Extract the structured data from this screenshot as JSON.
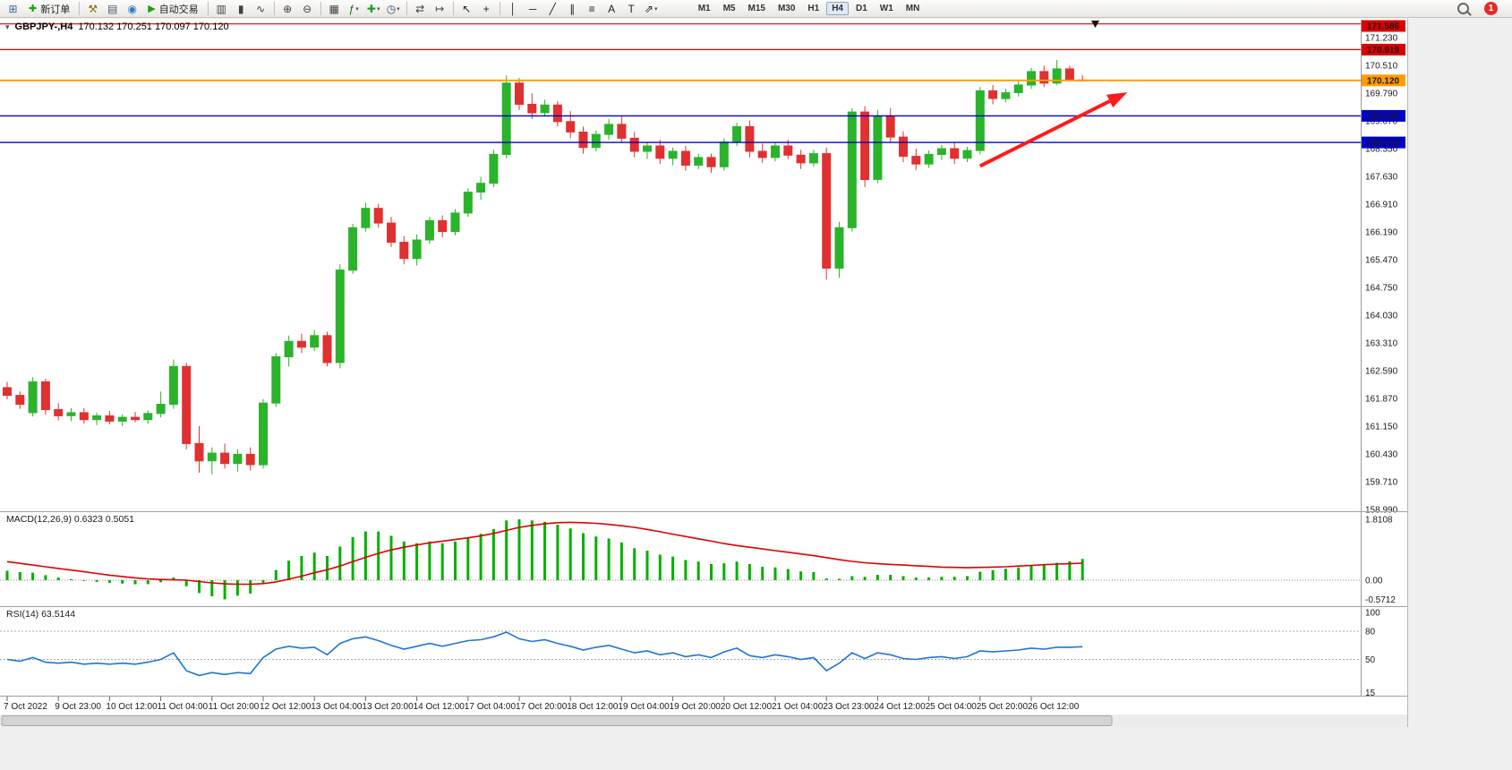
{
  "toolbar": {
    "items": [
      {
        "type": "icon",
        "name": "new-chart-icon",
        "glyph": "⊞",
        "color": "#2e6da4"
      },
      {
        "type": "button",
        "name": "new-order-button",
        "glyph": "✚",
        "glyph_color": "#18a018",
        "label": "新订单"
      },
      {
        "type": "sep"
      },
      {
        "type": "icon",
        "name": "metaeditor-icon",
        "glyph": "⚒",
        "color": "#8a6d21"
      },
      {
        "type": "icon",
        "name": "print-icon",
        "glyph": "▤",
        "color": "#4a5a6a"
      },
      {
        "type": "icon",
        "name": "data-window-icon",
        "glyph": "◉",
        "color": "#2e7dbd"
      },
      {
        "type": "button",
        "name": "autotrading-button",
        "glyph": "▶",
        "glyph_color": "#18a018",
        "label": "自动交易"
      },
      {
        "type": "sep"
      },
      {
        "type": "icon",
        "name": "bar-chart-icon",
        "glyph": "▥",
        "color": "#3f3f3f"
      },
      {
        "type": "icon",
        "name": "candlestick-chart-icon",
        "glyph": "▮",
        "color": "#3f3f3f"
      },
      {
        "type": "icon",
        "name": "line-chart-icon",
        "glyph": "∿",
        "color": "#3f3f3f"
      },
      {
        "type": "sep"
      },
      {
        "type": "icon",
        "name": "zoom-in-icon",
        "glyph": "⊕",
        "color": "#3f3f3f"
      },
      {
        "type": "icon",
        "name": "zoom-out-icon",
        "glyph": "⊖",
        "color": "#3f3f3f"
      },
      {
        "type": "sep"
      },
      {
        "type": "icon",
        "name": "tile-windows-icon",
        "glyph": "▦",
        "color": "#3f3f3f"
      },
      {
        "type": "icon",
        "name": "indicators-icon",
        "glyph": "ƒ",
        "color": "#0a7a0a",
        "caret": true
      },
      {
        "type": "icon",
        "name": "new-chart-dropdown-icon",
        "glyph": "✚",
        "color": "#18a018",
        "caret": true
      },
      {
        "type": "icon",
        "name": "periods-dropdown-icon",
        "glyph": "◷",
        "color": "#2e4a6a",
        "caret": true
      },
      {
        "type": "sep"
      },
      {
        "type": "icon",
        "name": "autoscroll-icon",
        "glyph": "⇄",
        "color": "#3f3f3f"
      },
      {
        "type": "icon",
        "name": "chart-shift-icon",
        "glyph": "↦",
        "color": "#3f3f3f"
      },
      {
        "type": "sep"
      },
      {
        "type": "icon",
        "name": "cursor-icon",
        "glyph": "↖",
        "color": "#222222"
      },
      {
        "type": "icon",
        "name": "crosshair-icon",
        "glyph": "+",
        "color": "#222222"
      },
      {
        "type": "sep"
      },
      {
        "type": "icon",
        "name": "vertical-line-icon",
        "glyph": "│",
        "color": "#222222"
      },
      {
        "type": "icon",
        "name": "horizontal-line-icon",
        "glyph": "─",
        "color": "#222222"
      },
      {
        "type": "icon",
        "name": "trendline-icon",
        "glyph": "╱",
        "color": "#222222"
      },
      {
        "type": "icon",
        "name": "channel-icon",
        "glyph": "∥",
        "color": "#222222"
      },
      {
        "type": "icon",
        "name": "fibonacci-icon",
        "glyph": "≡",
        "color": "#222222"
      },
      {
        "type": "icon",
        "name": "text-icon",
        "glyph": "A",
        "color": "#222222"
      },
      {
        "type": "icon",
        "name": "label-icon",
        "glyph": "T",
        "color": "#222222"
      },
      {
        "type": "icon",
        "name": "arrows-tool-icon",
        "glyph": "⇗",
        "color": "#222222",
        "caret": true
      }
    ],
    "timeframes": {
      "options": [
        "M1",
        "M5",
        "M15",
        "M30",
        "H1",
        "H4",
        "D1",
        "W1",
        "MN"
      ],
      "active": "H4"
    },
    "notification_count": "1"
  },
  "chart": {
    "symbol_period": "GBPJPY-,H4",
    "ohlc_text": "170.132 170.251 170.097 170.120",
    "macd_title": "MACD(12,26,9) 0.6323 0.5051",
    "rsi_title": "RSI(14) 63.5144",
    "collapse_glyph": "▾"
  },
  "chart_data": {
    "type": "candlestick",
    "symbol": "GBPJPY-",
    "timeframe": "H4",
    "current_bar": {
      "open": 170.132,
      "high": 170.251,
      "low": 170.097,
      "close": 170.12
    },
    "visible_price_range": [
      158.97,
      171.69
    ],
    "colors": {
      "up": "#2bb32b",
      "down": "#e03030",
      "background": "#ffffff"
    },
    "price_axis": {
      "labels": [
        "171.230",
        "170.510",
        "169.790",
        "169.070",
        "168.350",
        "167.630",
        "166.910",
        "166.190",
        "165.470",
        "164.750",
        "164.030",
        "163.310",
        "162.590",
        "161.870",
        "161.150",
        "160.430",
        "159.710",
        "158.990"
      ]
    },
    "hlines": [
      {
        "price": 171.586,
        "color": "#dd0000",
        "text_color": "#ffffff",
        "width": 1.2
      },
      {
        "price": 170.919,
        "color": "#dd0000",
        "text_color": "#ffffff",
        "width": 1.2
      },
      {
        "price": 170.12,
        "color": "#ff9c00",
        "text_color": "#000000",
        "width": 1.8
      },
      {
        "price": 169.2,
        "color": "#0000cc",
        "text_color": "#ffffff",
        "width": 1.4
      },
      {
        "price": 168.51,
        "color": "#0000cc",
        "text_color": "#ffffff",
        "width": 1.4
      }
    ],
    "arrow": {
      "from_index": 76,
      "from_price": 167.9,
      "to_index": 87.5,
      "to_price": 169.81,
      "color": "#ff1a1a"
    },
    "top_marker_index": 85,
    "time_label_step": 4,
    "time_labels": [
      "7 Oct 2022",
      "9 Oct 23:00",
      "10 Oct 12:00",
      "11 Oct 04:00",
      "11 Oct 20:00",
      "12 Oct 12:00",
      "13 Oct 04:00",
      "13 Oct 20:00",
      "14 Oct 12:00",
      "17 Oct 04:00",
      "17 Oct 20:00",
      "18 Oct 12:00",
      "19 Oct 04:00",
      "19 Oct 20:00",
      "20 Oct 12:00",
      "21 Oct 04:00",
      "23 Oct 23:00",
      "24 Oct 12:00",
      "25 Oct 04:00",
      "25 Oct 20:00",
      "26 Oct 12:00"
    ],
    "candles": [
      [
        162.15,
        162.3,
        161.85,
        161.95
      ],
      [
        161.95,
        162.05,
        161.6,
        161.72
      ],
      [
        161.5,
        162.42,
        161.4,
        162.3
      ],
      [
        162.3,
        162.38,
        161.45,
        161.58
      ],
      [
        161.58,
        161.75,
        161.3,
        161.42
      ],
      [
        161.42,
        161.62,
        161.28,
        161.5
      ],
      [
        161.5,
        161.62,
        161.22,
        161.32
      ],
      [
        161.32,
        161.5,
        161.18,
        161.42
      ],
      [
        161.42,
        161.54,
        161.2,
        161.28
      ],
      [
        161.28,
        161.46,
        161.15,
        161.38
      ],
      [
        161.38,
        161.52,
        161.25,
        161.32
      ],
      [
        161.32,
        161.56,
        161.22,
        161.48
      ],
      [
        161.48,
        162.05,
        161.38,
        161.72
      ],
      [
        161.72,
        162.88,
        161.6,
        162.7
      ],
      [
        162.7,
        162.8,
        160.55,
        160.7
      ],
      [
        160.7,
        161.15,
        159.95,
        160.25
      ],
      [
        160.25,
        160.6,
        159.9,
        160.45
      ],
      [
        160.45,
        160.7,
        160.05,
        160.18
      ],
      [
        160.18,
        160.55,
        159.97,
        160.42
      ],
      [
        160.42,
        160.6,
        160.0,
        160.15
      ],
      [
        160.15,
        161.85,
        160.05,
        161.75
      ],
      [
        161.75,
        163.05,
        161.65,
        162.95
      ],
      [
        162.95,
        163.5,
        162.7,
        163.35
      ],
      [
        163.35,
        163.55,
        163.05,
        163.2
      ],
      [
        163.2,
        163.65,
        163.1,
        163.5
      ],
      [
        163.5,
        163.6,
        162.7,
        162.8
      ],
      [
        162.8,
        165.35,
        162.65,
        165.2
      ],
      [
        165.2,
        166.4,
        165.1,
        166.3
      ],
      [
        166.3,
        166.95,
        166.2,
        166.8
      ],
      [
        166.8,
        166.92,
        166.3,
        166.42
      ],
      [
        166.42,
        166.58,
        165.8,
        165.92
      ],
      [
        165.92,
        166.08,
        165.35,
        165.5
      ],
      [
        165.5,
        166.12,
        165.32,
        165.98
      ],
      [
        165.98,
        166.58,
        165.88,
        166.48
      ],
      [
        166.48,
        166.62,
        166.05,
        166.2
      ],
      [
        166.2,
        166.78,
        166.1,
        166.68
      ],
      [
        166.68,
        167.32,
        166.58,
        167.22
      ],
      [
        167.22,
        167.62,
        167.02,
        167.45
      ],
      [
        167.45,
        168.32,
        167.35,
        168.2
      ],
      [
        168.2,
        170.25,
        168.1,
        170.05
      ],
      [
        170.05,
        170.18,
        169.35,
        169.5
      ],
      [
        169.5,
        169.78,
        169.12,
        169.28
      ],
      [
        169.28,
        169.62,
        169.18,
        169.48
      ],
      [
        169.48,
        169.58,
        168.92,
        169.05
      ],
      [
        169.05,
        169.32,
        168.62,
        168.78
      ],
      [
        168.78,
        168.92,
        168.22,
        168.38
      ],
      [
        168.38,
        168.82,
        168.28,
        168.72
      ],
      [
        168.72,
        169.12,
        168.58,
        168.98
      ],
      [
        168.98,
        169.18,
        168.52,
        168.62
      ],
      [
        168.62,
        168.78,
        168.12,
        168.28
      ],
      [
        168.28,
        168.52,
        168.08,
        168.42
      ],
      [
        168.42,
        168.58,
        167.95,
        168.1
      ],
      [
        168.1,
        168.38,
        167.92,
        168.28
      ],
      [
        168.28,
        168.42,
        167.78,
        167.92
      ],
      [
        167.92,
        168.22,
        167.82,
        168.12
      ],
      [
        168.12,
        168.22,
        167.72,
        167.88
      ],
      [
        167.88,
        168.62,
        167.78,
        168.52
      ],
      [
        168.52,
        169.02,
        168.42,
        168.92
      ],
      [
        168.92,
        169.08,
        168.12,
        168.28
      ],
      [
        168.28,
        168.48,
        167.98,
        168.12
      ],
      [
        168.12,
        168.52,
        168.02,
        168.42
      ],
      [
        168.42,
        168.58,
        168.08,
        168.18
      ],
      [
        168.18,
        168.32,
        167.82,
        167.98
      ],
      [
        167.98,
        168.32,
        167.88,
        168.22
      ],
      [
        168.22,
        168.38,
        164.95,
        165.25
      ],
      [
        165.25,
        166.45,
        165.0,
        166.3
      ],
      [
        166.3,
        169.4,
        166.2,
        169.3
      ],
      [
        169.3,
        169.45,
        167.35,
        167.55
      ],
      [
        167.55,
        169.35,
        167.45,
        169.2
      ],
      [
        169.2,
        169.4,
        168.5,
        168.65
      ],
      [
        168.65,
        168.8,
        168.0,
        168.15
      ],
      [
        168.15,
        168.35,
        167.8,
        167.95
      ],
      [
        167.95,
        168.3,
        167.85,
        168.2
      ],
      [
        168.2,
        168.45,
        168.05,
        168.35
      ],
      [
        168.35,
        168.5,
        167.95,
        168.1
      ],
      [
        168.1,
        168.4,
        168.0,
        168.3
      ],
      [
        168.3,
        169.95,
        168.2,
        169.85
      ],
      [
        169.85,
        170.0,
        169.5,
        169.65
      ],
      [
        169.65,
        169.9,
        169.55,
        169.8
      ],
      [
        169.8,
        170.1,
        169.7,
        170.0
      ],
      [
        170.0,
        170.45,
        169.9,
        170.35
      ],
      [
        170.35,
        170.5,
        169.95,
        170.05
      ],
      [
        170.05,
        170.65,
        170.0,
        170.42
      ],
      [
        170.42,
        170.5,
        170.2,
        170.13
      ],
      [
        170.132,
        170.251,
        170.097,
        170.12
      ]
    ],
    "macd": {
      "label": "MACD(12,26,9)",
      "values_text": "0.6323 0.5051",
      "axis_labels": [
        "1.8108",
        "0.00",
        "-0.5712"
      ],
      "range": [
        -0.5712,
        1.8108
      ],
      "histogram_color": "#00b000",
      "signal_color": "#e00000",
      "histogram": [
        0.28,
        0.24,
        0.22,
        0.15,
        0.08,
        0.03,
        -0.02,
        -0.05,
        -0.08,
        -0.1,
        -0.12,
        -0.12,
        -0.06,
        0.08,
        -0.18,
        -0.38,
        -0.48,
        -0.5712,
        -0.46,
        -0.4,
        -0.08,
        0.3,
        0.58,
        0.72,
        0.82,
        0.72,
        1.0,
        1.28,
        1.45,
        1.45,
        1.32,
        1.15,
        1.1,
        1.15,
        1.1,
        1.15,
        1.25,
        1.38,
        1.52,
        1.78,
        1.8108,
        1.78,
        1.74,
        1.65,
        1.54,
        1.4,
        1.3,
        1.24,
        1.12,
        0.95,
        0.88,
        0.76,
        0.7,
        0.6,
        0.55,
        0.48,
        0.5,
        0.55,
        0.48,
        0.4,
        0.38,
        0.33,
        0.26,
        0.24,
        0.05,
        0.04,
        0.12,
        0.1,
        0.16,
        0.16,
        0.12,
        0.08,
        0.08,
        0.1,
        0.1,
        0.12,
        0.25,
        0.3,
        0.34,
        0.38,
        0.45,
        0.46,
        0.52,
        0.56,
        0.6323
      ],
      "signal": [
        0.55,
        0.5,
        0.45,
        0.4,
        0.35,
        0.3,
        0.25,
        0.2,
        0.15,
        0.11,
        0.07,
        0.04,
        0.02,
        0.01,
        0.0,
        -0.04,
        -0.08,
        -0.11,
        -0.12,
        -0.12,
        -0.1,
        -0.05,
        0.03,
        0.12,
        0.22,
        0.31,
        0.42,
        0.55,
        0.68,
        0.8,
        0.9,
        0.98,
        1.05,
        1.11,
        1.16,
        1.21,
        1.26,
        1.32,
        1.39,
        1.48,
        1.57,
        1.63,
        1.68,
        1.71,
        1.72,
        1.71,
        1.69,
        1.66,
        1.62,
        1.57,
        1.51,
        1.44,
        1.37,
        1.3,
        1.23,
        1.16,
        1.09,
        1.03,
        0.98,
        0.93,
        0.88,
        0.83,
        0.78,
        0.73,
        0.67,
        0.61,
        0.56,
        0.52,
        0.49,
        0.47,
        0.45,
        0.43,
        0.41,
        0.39,
        0.38,
        0.37,
        0.38,
        0.39,
        0.4,
        0.42,
        0.44,
        0.46,
        0.48,
        0.49,
        0.5051
      ]
    },
    "rsi": {
      "label": "RSI(14)",
      "value_text": "63.5144",
      "axis_labels": [
        "100",
        "80",
        "50",
        "15"
      ],
      "levels": [
        80,
        50
      ],
      "range": [
        15,
        100
      ],
      "line_color": "#1f76d2",
      "values": [
        50,
        48,
        52,
        47,
        46,
        47,
        45,
        46,
        45,
        46,
        45,
        47,
        50,
        57,
        38,
        33,
        36,
        34,
        36,
        35,
        52,
        61,
        64,
        62,
        63,
        55,
        67,
        72,
        74,
        70,
        65,
        61,
        64,
        67,
        64,
        67,
        70,
        71,
        74,
        79,
        72,
        69,
        71,
        67,
        64,
        60,
        63,
        65,
        61,
        57,
        59,
        55,
        57,
        53,
        55,
        52,
        58,
        62,
        54,
        52,
        55,
        53,
        50,
        52,
        38,
        46,
        57,
        51,
        57,
        55,
        51,
        50,
        52,
        53,
        51,
        53,
        59,
        58,
        59,
        60,
        62,
        61,
        63,
        63,
        63.5
      ]
    }
  }
}
